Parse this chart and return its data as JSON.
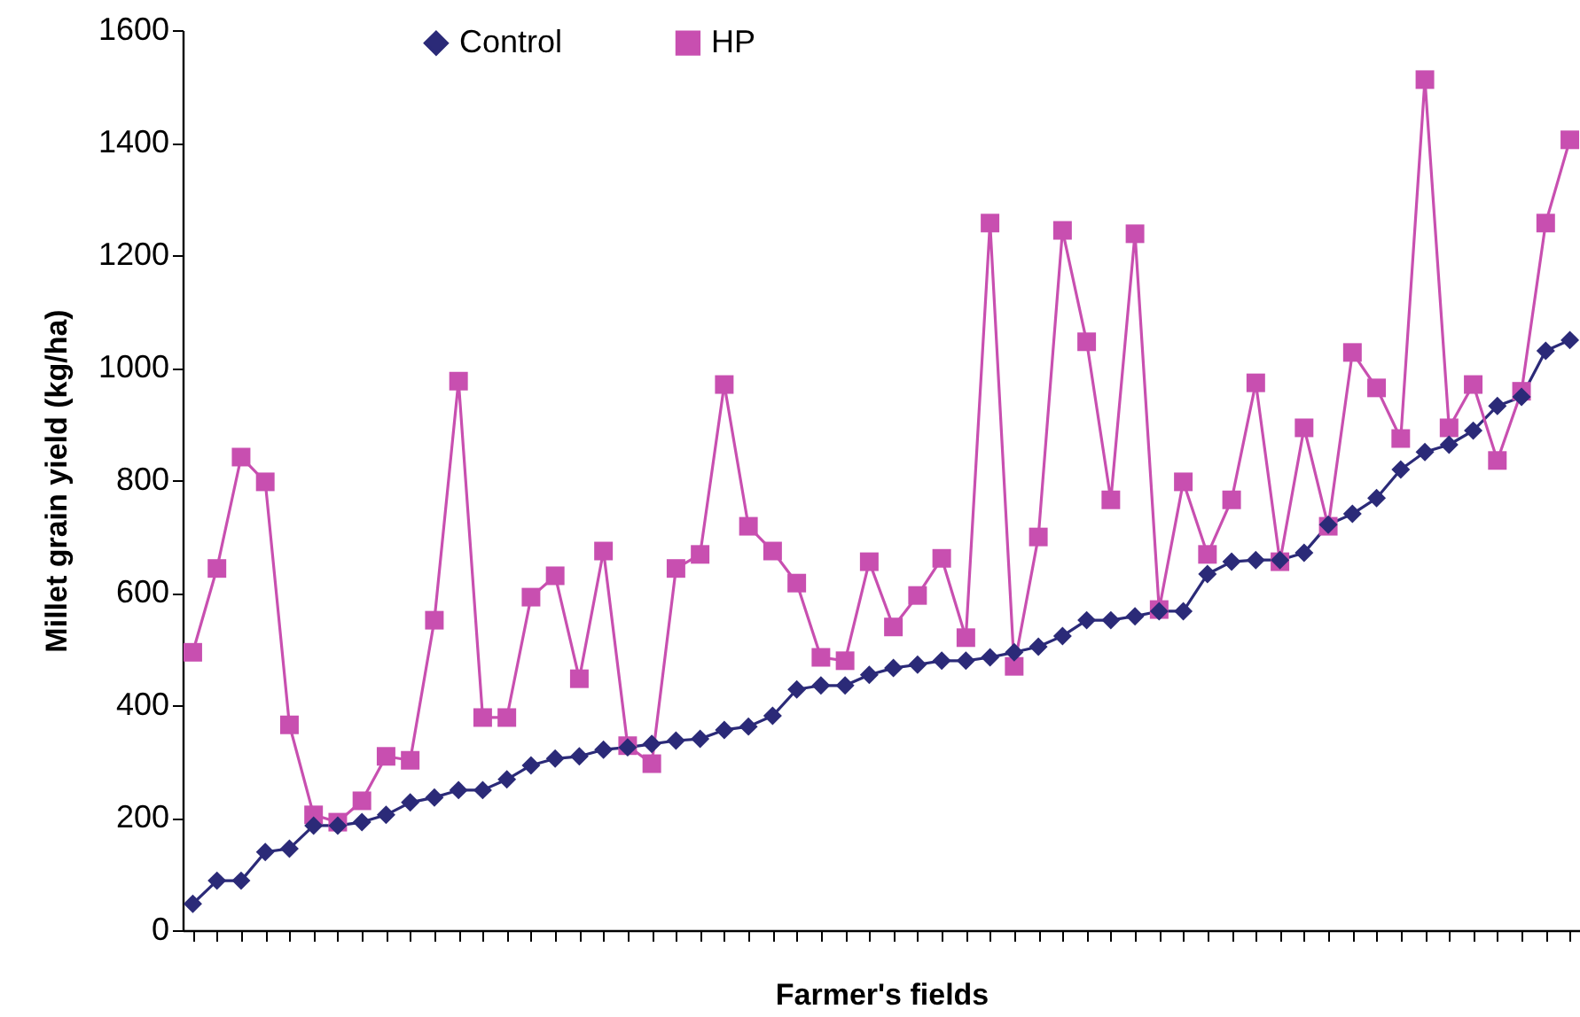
{
  "chart_data": {
    "type": "line",
    "xlabel": "Farmer's fields",
    "ylabel": "Millet grain yield (kg/ha)",
    "categories": [
      null,
      null,
      null,
      null,
      null,
      null,
      null,
      null,
      null,
      null,
      null,
      null,
      null,
      null,
      null,
      null,
      null,
      null,
      null,
      null,
      null,
      null,
      null,
      null,
      null,
      null,
      null,
      null,
      null,
      null,
      null,
      null,
      null,
      null,
      null,
      null,
      null,
      null,
      null,
      null,
      null,
      null,
      null,
      null,
      null,
      null,
      null,
      null,
      null,
      null,
      null,
      null,
      null,
      null,
      null,
      null,
      null,
      null
    ],
    "series": [
      {
        "name": "Control",
        "color": "#2b2a78",
        "marker": "diamond",
        "values": [
          47,
          88,
          88,
          139,
          145,
          186,
          186,
          192,
          205,
          227,
          236,
          249,
          249,
          268,
          293,
          305,
          309,
          321,
          325,
          331,
          337,
          340,
          356,
          362,
          381,
          428,
          435,
          435,
          454,
          466,
          472,
          479,
          479,
          485,
          494,
          504,
          523,
          551,
          551,
          558,
          567,
          567,
          633,
          655,
          658,
          658,
          671,
          721,
          740,
          768,
          819,
          850,
          863,
          888,
          932,
          948,
          1030,
          1049
        ]
      },
      {
        "name": "HP",
        "color": "#c84fb0",
        "marker": "square",
        "values": [
          494,
          643,
          841,
          797,
          365,
          205,
          192,
          230,
          309,
          302,
          551,
          976,
          378,
          378,
          592,
          630,
          447,
          674,
          328,
          296,
          643,
          668,
          970,
          718,
          674,
          617,
          485,
          479,
          655,
          539,
          595,
          661,
          520,
          1257,
          469,
          699,
          1244,
          1046,
          765,
          1238,
          570,
          797,
          668,
          765,
          973,
          655,
          893,
          718,
          1027,
          964,
          874,
          1512,
          893,
          970,
          835,
          958,
          1257,
          1405
        ]
      }
    ],
    "ylim": [
      0,
      1600
    ],
    "yticks": [
      0,
      200,
      400,
      600,
      800,
      1000,
      1200,
      1400,
      1600
    ],
    "grid": false,
    "legend": "top",
    "tick_labels": "y",
    "line_style": "solid"
  }
}
